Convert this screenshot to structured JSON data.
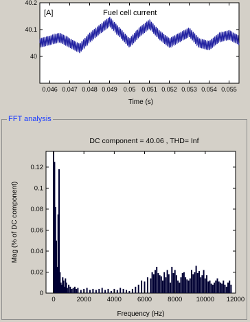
{
  "top_chart": {
    "series_label": "Fuel cell current",
    "unit_label": "[A]",
    "xlabel": "Time (s)",
    "x_ticks": [
      "0.046",
      "0.047",
      "0.048",
      "0.049",
      "0.05",
      "0.051",
      "0.052",
      "0.053",
      "0.054",
      "0.055"
    ],
    "y_ticks": [
      "40.2",
      "40.1",
      "40"
    ],
    "line_color": "#2020a0"
  },
  "fft_panel": {
    "title": "FFT analysis",
    "summary": "DC component = 40.06 , THD= Inf"
  },
  "chart_data": [
    {
      "type": "line",
      "title": "Fuel cell current",
      "xlabel": "Time (s)",
      "ylabel": "[A]",
      "xlim": [
        0.0455,
        0.0555
      ],
      "ylim": [
        39.9,
        40.2
      ],
      "series": [
        {
          "name": "Fuel cell current",
          "x": [
            0.0455,
            0.0465,
            0.0475,
            0.048,
            0.0485,
            0.049,
            0.0495,
            0.05,
            0.0505,
            0.051,
            0.0515,
            0.052,
            0.0525,
            0.053,
            0.0535,
            0.054,
            0.0545,
            0.055,
            0.0555
          ],
          "y": [
            40.05,
            40.07,
            40.03,
            40.07,
            40.1,
            40.13,
            40.09,
            40.05,
            40.09,
            40.12,
            40.08,
            40.05,
            40.07,
            40.09,
            40.05,
            40.04,
            40.07,
            40.08,
            40.06
          ]
        }
      ]
    },
    {
      "type": "bar",
      "title": "DC component = 40.06 , THD= Inf",
      "xlabel": "Frequency (Hz)",
      "ylabel": "Mag (% of DC component)",
      "xlim": [
        -500,
        12000
      ],
      "ylim": [
        0,
        0.135
      ],
      "x_ticks": [
        0,
        2000,
        4000,
        6000,
        8000,
        10000,
        12000
      ],
      "y_ticks": [
        0,
        0.02,
        0.04,
        0.06,
        0.08,
        0.1,
        0.12
      ],
      "bar_color": "#000033",
      "series": [
        {
          "x": [
            0,
            60,
            120,
            180,
            240,
            300,
            360,
            420,
            480,
            540,
            600,
            660,
            720,
            780,
            840,
            900,
            1000,
            1100,
            1200,
            1300,
            1400,
            1500,
            1600,
            1800,
            2000,
            2200,
            2400,
            2600,
            2800,
            3000,
            3200,
            3400,
            3600,
            3800,
            4000,
            4200,
            4400,
            4600,
            4800,
            5000,
            5200,
            5400,
            5600,
            5800,
            6000,
            6200,
            6400,
            6500,
            6600,
            6700,
            6800,
            6900,
            7000,
            7100,
            7200,
            7300,
            7400,
            7500,
            7600,
            7700,
            7800,
            7900,
            8000,
            8100,
            8200,
            8300,
            8400,
            8500,
            8600,
            8700,
            8800,
            8900,
            9000,
            9100,
            9200,
            9300,
            9400,
            9500,
            9600,
            9700,
            9800,
            9900,
            10000,
            10100,
            10200,
            10300,
            10400,
            10500,
            10600,
            10700,
            10800,
            10900,
            11000,
            11100,
            11200,
            11300,
            11400,
            11500,
            11600,
            11700
          ],
          "values": [
            0.135,
            0.125,
            0.082,
            0.05,
            0.025,
            0.075,
            0.118,
            0.02,
            0.01,
            0.008,
            0.015,
            0.012,
            0.006,
            0.014,
            0.01,
            0.005,
            0.008,
            0.006,
            0.004,
            0.005,
            0.006,
            0.004,
            0.005,
            0.003,
            0.004,
            0.005,
            0.003,
            0.004,
            0.003,
            0.004,
            0.005,
            0.003,
            0.004,
            0.002,
            0.004,
            0.003,
            0.005,
            0.004,
            0.003,
            0.002,
            0.004,
            0.006,
            0.008,
            0.012,
            0.011,
            0.015,
            0.014,
            0.02,
            0.018,
            0.022,
            0.025,
            0.019,
            0.017,
            0.016,
            0.012,
            0.02,
            0.015,
            0.022,
            0.018,
            0.01,
            0.025,
            0.019,
            0.022,
            0.017,
            0.012,
            0.01,
            0.015,
            0.019,
            0.02,
            0.015,
            0.013,
            0.012,
            0.014,
            0.022,
            0.018,
            0.02,
            0.026,
            0.019,
            0.021,
            0.015,
            0.017,
            0.022,
            0.014,
            0.017,
            0.011,
            0.012,
            0.009,
            0.008,
            0.01,
            0.012,
            0.014,
            0.011,
            0.01,
            0.009,
            0.012,
            0.008,
            0.006,
            0.01,
            0.012,
            0.008
          ]
        }
      ]
    }
  ]
}
